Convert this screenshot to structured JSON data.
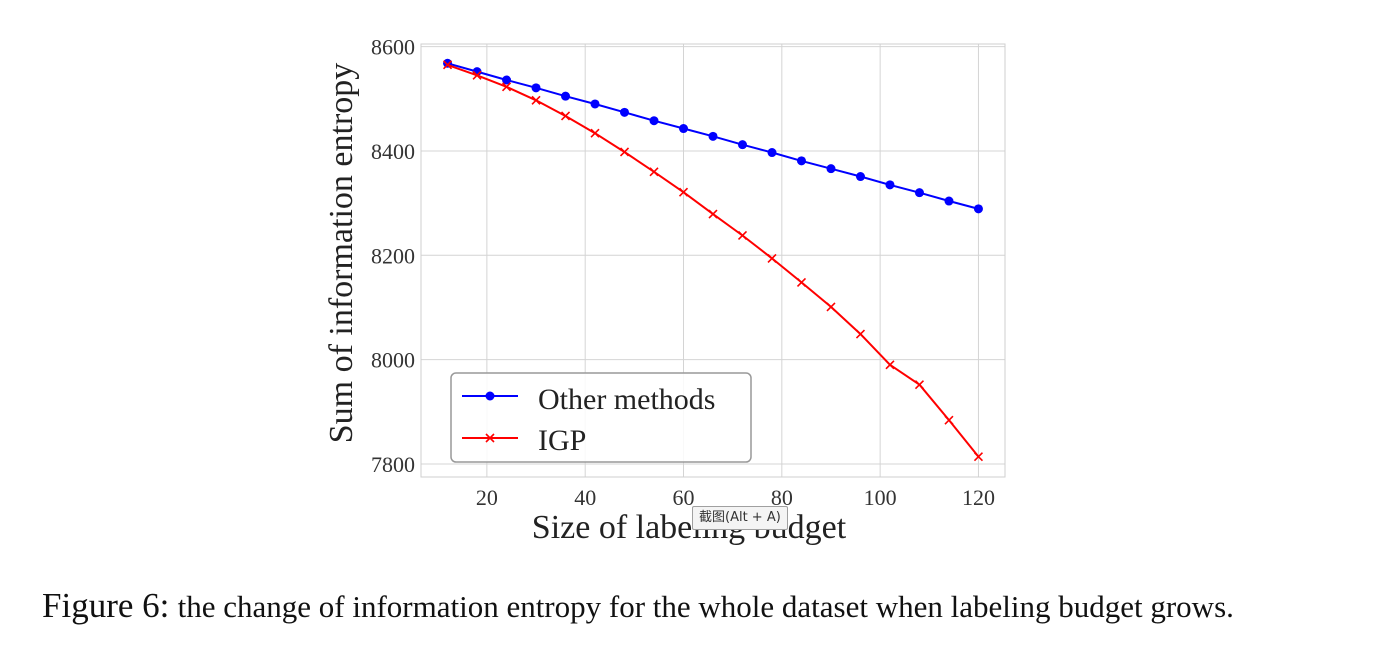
{
  "chart_data": {
    "type": "line",
    "xlabel": "Size of labeling budget",
    "ylabel": "Sum of information entropy",
    "x": [
      12,
      18,
      24,
      30,
      36,
      42,
      48,
      54,
      60,
      66,
      72,
      78,
      84,
      90,
      96,
      102,
      108,
      114,
      120
    ],
    "series": [
      {
        "name": "Other methods",
        "color": "#0000ff",
        "marker": "circle",
        "values": [
          8568,
          8552,
          8536,
          8521,
          8505,
          8490,
          8474,
          8458,
          8443,
          8428,
          8412,
          8397,
          8381,
          8366,
          8351,
          8335,
          8320,
          8304,
          8289
        ]
      },
      {
        "name": "IGP",
        "color": "#ff0000",
        "marker": "x",
        "values": [
          8565,
          8545,
          8523,
          8497,
          8467,
          8434,
          8398,
          8360,
          8321,
          8279,
          8238,
          8194,
          8148,
          8101,
          8049,
          7990,
          7952,
          7884,
          7814
        ]
      }
    ],
    "xticks": [
      20,
      40,
      60,
      80,
      100,
      120
    ],
    "yticks": [
      7800,
      8000,
      8200,
      8400,
      8600
    ],
    "xlim": [
      6.6,
      125.4
    ],
    "ylim": [
      7775,
      8605
    ],
    "grid": true,
    "legend_position": "lower-left"
  },
  "caption": {
    "label": "Figure 6:",
    "text": "the change of information entropy for the whole dataset when labeling budget grows."
  },
  "overlay_tooltip": "截图(Alt + A)"
}
